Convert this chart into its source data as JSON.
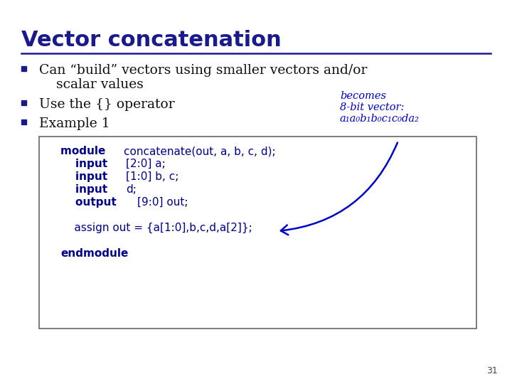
{
  "title": "Vector concatenation",
  "title_color": "#1a1a8c",
  "title_fontsize": 22,
  "bg_color": "#ffffff",
  "bullet_color": "#1a1a8c",
  "bullet1": "Can “build” vectors using smaller vectors and/or",
  "bullet1b": "    scalar values",
  "bullet2": "Use the {} operator",
  "bullet3": "Example 1",
  "annotation_lines": [
    "becomes",
    "8-bit vector:",
    "a₁a₀b₁b₀c₁c₀da₂"
  ],
  "annotation_color": "#0000cc",
  "code_color": "#00008b",
  "code_bg": "#ffffff",
  "code_border": "#666666",
  "slide_number": "31",
  "line_color": "#1a1a8c",
  "text_color": "#111111"
}
